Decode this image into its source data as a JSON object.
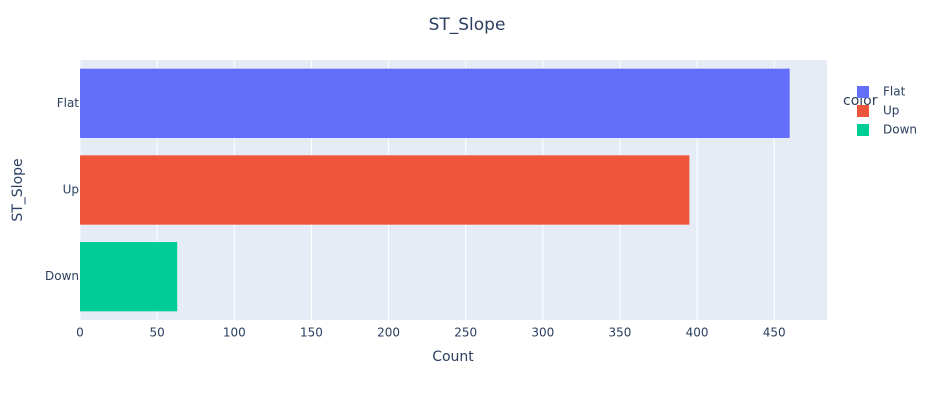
{
  "chart_data": {
    "type": "bar",
    "orientation": "horizontal",
    "title": "ST_Slope",
    "x_label": "Count",
    "y_label": "ST_Slope",
    "legend_title": "color",
    "categories": [
      "Flat",
      "Up",
      "Down"
    ],
    "series": [
      {
        "name": "Flat",
        "color": "#636efa",
        "values": [
          460,
          null,
          null
        ]
      },
      {
        "name": "Up",
        "color": "#ef553b",
        "values": [
          null,
          395,
          null
        ]
      },
      {
        "name": "Down",
        "color": "#00cc96",
        "values": [
          null,
          null,
          63
        ]
      }
    ],
    "xlim": [
      0,
      484.2
    ],
    "xticks": [
      0,
      50,
      100,
      150,
      200,
      250,
      300,
      350,
      400,
      450
    ],
    "grid": true,
    "legend": "right"
  }
}
